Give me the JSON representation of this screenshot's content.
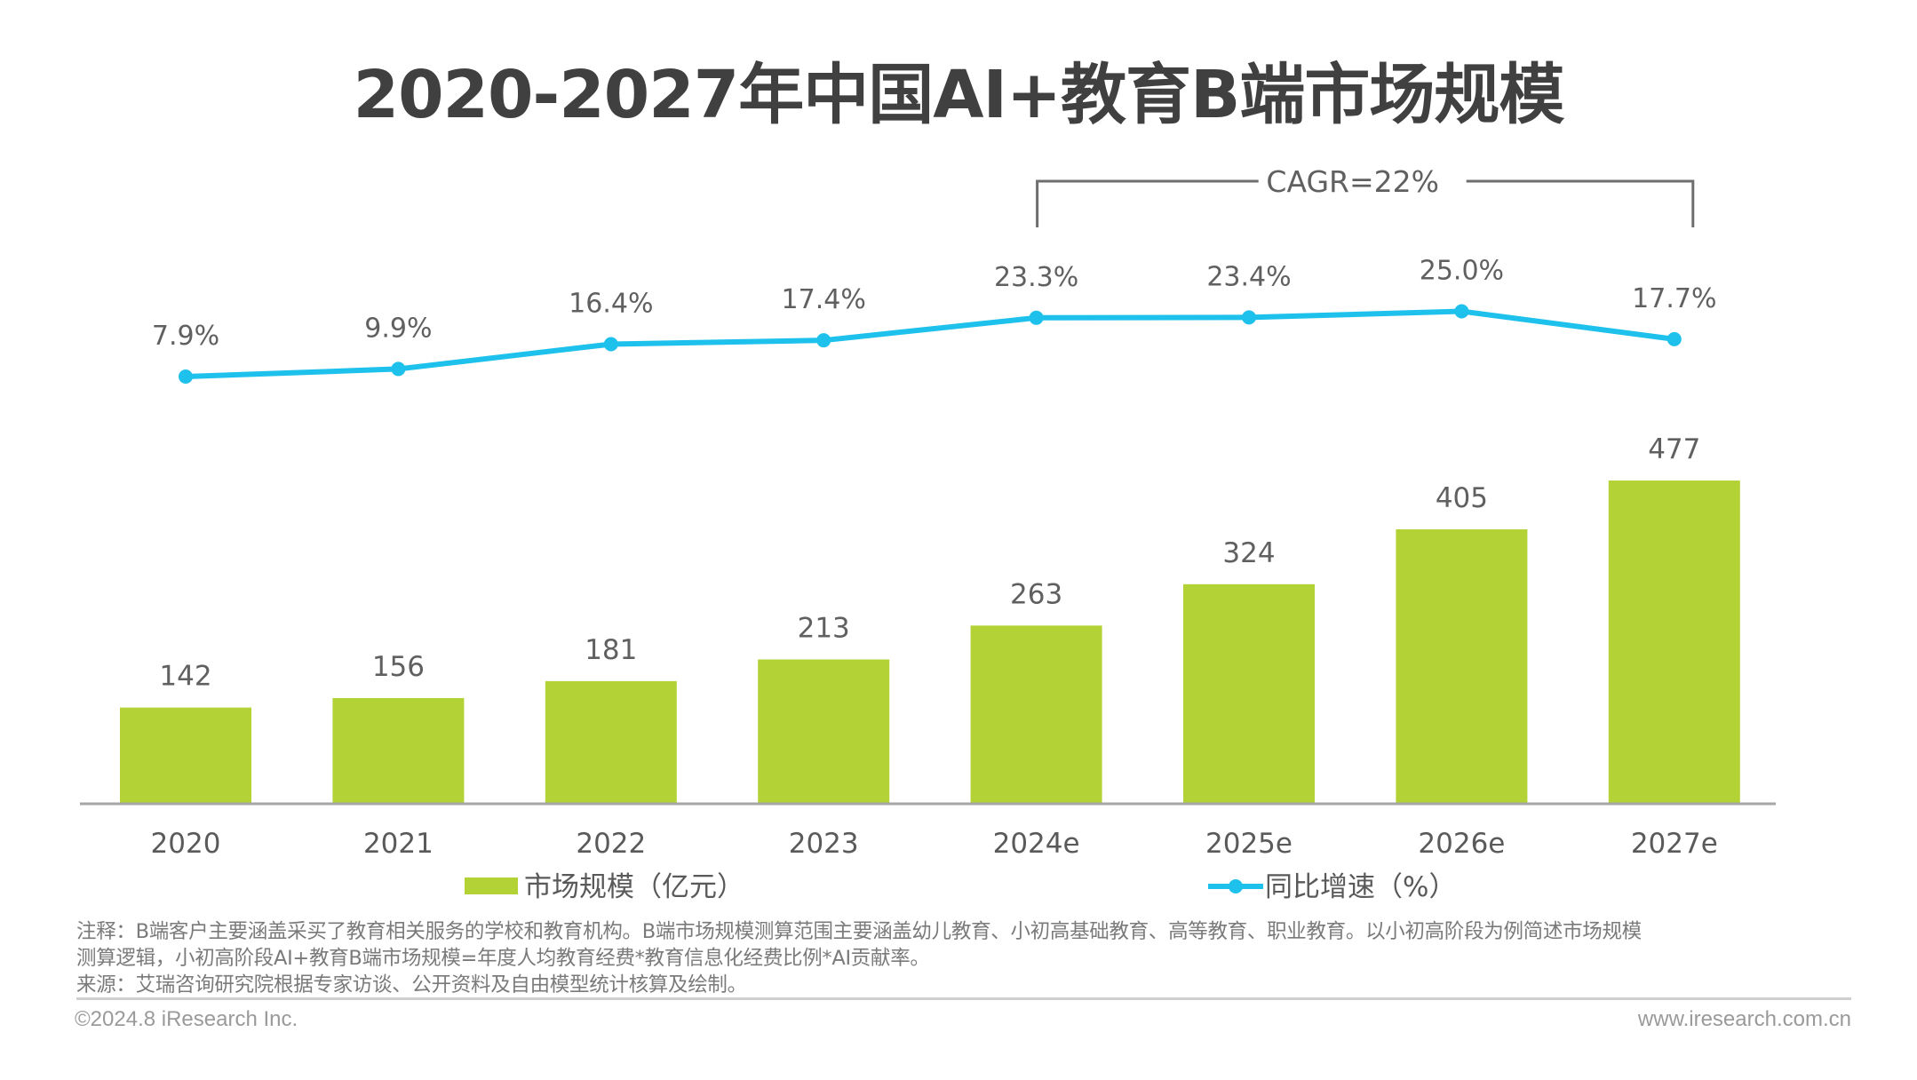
{
  "chart_data": {
    "type": "bar",
    "title": "2020-2027年中国AI+教育B端市场规模",
    "categories": [
      "2020",
      "2021",
      "2022",
      "2023",
      "2024e",
      "2025e",
      "2026e",
      "2027e"
    ],
    "series": [
      {
        "name": "市场规模（亿元）",
        "type": "bar",
        "color": "#b2d235",
        "values": [
          142,
          156,
          181,
          213,
          263,
          324,
          405,
          477
        ],
        "labels": [
          "142",
          "156",
          "181",
          "213",
          "263",
          "324",
          "405",
          "477"
        ]
      },
      {
        "name": "同比增速（%）",
        "type": "line",
        "color": "#1ec1ec",
        "values": [
          7.9,
          9.9,
          16.4,
          17.4,
          23.3,
          23.4,
          25.0,
          17.7
        ],
        "labels": [
          "7.9%",
          "9.9%",
          "16.4%",
          "17.4%",
          "23.3%",
          "23.4%",
          "25.0%",
          "17.7%"
        ]
      }
    ],
    "annotation": {
      "text": "CAGR=22%",
      "from_category": "2024e",
      "to_category": "2027e"
    },
    "xlabel": "",
    "ylabel": "",
    "ylim": [
      0,
      500
    ],
    "grid": false,
    "legend": "bottom"
  },
  "notes": {
    "line1": "注释：B端客户主要涵盖采买了教育相关服务的学校和教育机构。B端市场规模测算范围主要涵盖幼儿教育、小初高基础教育、高等教育、职业教育。以小初高阶段为例简述市场规模",
    "line2": "测算逻辑，小初高阶段AI+教育B端市场规模=年度人均教育经费*教育信息化经费比例*AI贡献率。",
    "source": "来源：艾瑞咨询研究院根据专家访谈、公开资料及自由模型统计核算及绘制。"
  },
  "footer": {
    "copyright": "©2024.8 iResearch Inc.",
    "website": "www.iresearch.com.cn"
  }
}
